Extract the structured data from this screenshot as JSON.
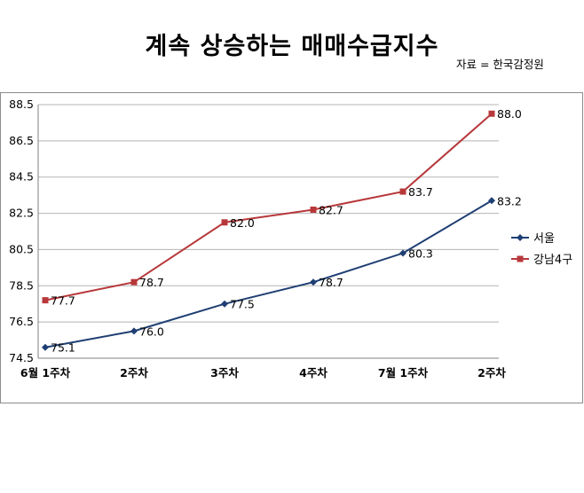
{
  "title": "계속 상승하는 매매수급지수",
  "source": "자료 = 한국감정원",
  "chart_data": {
    "type": "line",
    "title": "계속 상승하는 매매수급지수",
    "categories": [
      "6월 1주차",
      "2주차",
      "3주차",
      "4주차",
      "7월 1주차",
      "2주차"
    ],
    "ylim": [
      74.5,
      88.5
    ],
    "yticks": [
      "74.5",
      "76.5",
      "78.5",
      "80.5",
      "82.5",
      "84.5",
      "86.5",
      "88.5"
    ],
    "grid": true,
    "legend": "right",
    "series": [
      {
        "name": "서울",
        "color": "#1f3f73",
        "marker": "diamond",
        "values": [
          75.1,
          76.0,
          77.5,
          78.7,
          80.3,
          83.2
        ],
        "labels": [
          "75.1",
          "76.0",
          "77.5",
          "78.7",
          "80.3",
          "83.2"
        ]
      },
      {
        "name": "강남4구",
        "color": "#b7383a",
        "marker": "square",
        "values": [
          77.7,
          78.7,
          82.0,
          82.7,
          83.7,
          88.0
        ],
        "labels": [
          "77.7",
          "78.7",
          "82.0",
          "82.7",
          "83.7",
          "88.0"
        ]
      }
    ]
  }
}
